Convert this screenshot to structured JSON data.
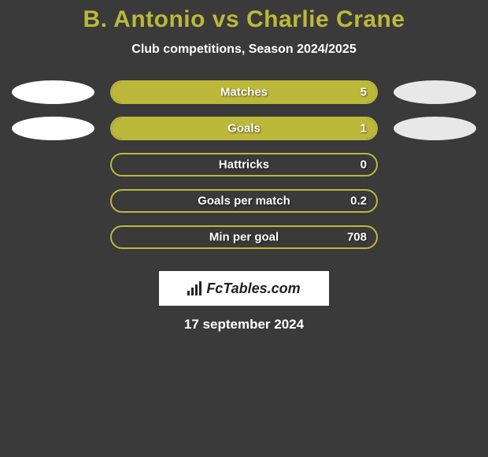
{
  "title": "B. Antonio vs Charlie Crane",
  "subtitle": "Club competitions, Season 2024/2025",
  "background_color": "#3a3a3a",
  "accent_color": "#bcb83a",
  "text_color": "#ffffff",
  "bar_shell_width": 340,
  "bar_shell_height": 30,
  "rows": [
    {
      "label": "Matches",
      "value": "5",
      "fill_pct": 100,
      "show_ellipses": true
    },
    {
      "label": "Goals",
      "value": "1",
      "fill_pct": 100,
      "show_ellipses": true
    },
    {
      "label": "Hattricks",
      "value": "0",
      "fill_pct": 0,
      "show_ellipses": false
    },
    {
      "label": "Goals per match",
      "value": "0.2",
      "fill_pct": 0,
      "show_ellipses": false
    },
    {
      "label": "Min per goal",
      "value": "708",
      "fill_pct": 0,
      "show_ellipses": false
    }
  ],
  "logo_text": "FcTables.com",
  "date": "17 september 2024"
}
